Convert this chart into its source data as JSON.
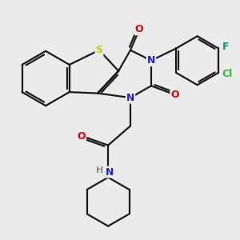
{
  "bg_color": "#ebebeb",
  "bond_color": "#1a1a1a",
  "bond_width": 1.6,
  "atom_colors": {
    "S": "#cccc00",
    "N": "#2020dd",
    "O": "#dd0000",
    "F": "#009977",
    "Cl": "#33bb33",
    "H": "#888888"
  }
}
